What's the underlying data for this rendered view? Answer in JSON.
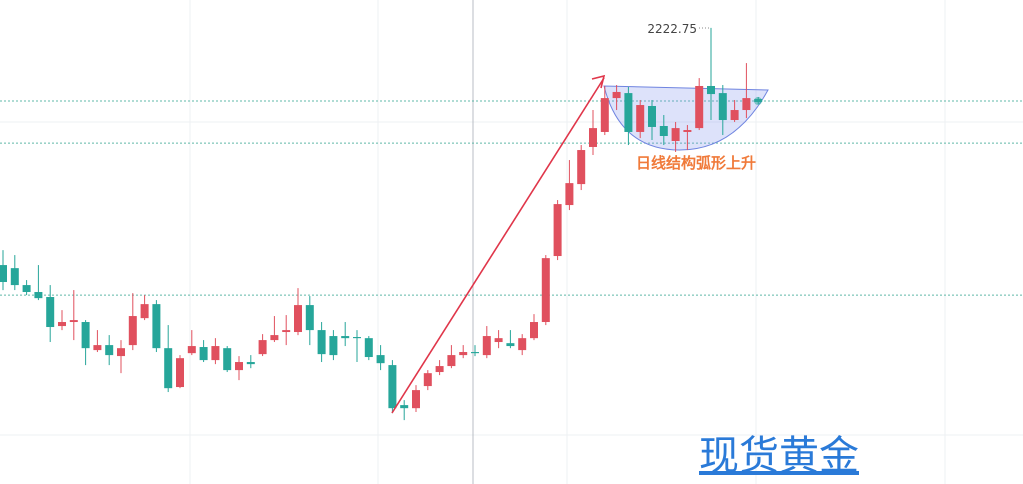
{
  "chart_data": {
    "type": "candlestick",
    "high_label": "2222.75",
    "annotation": "日线结构弧形上升",
    "watermark": "现货黄金",
    "up_color": "#e0505e",
    "down_color": "#26a69a",
    "ylim": [
      1940,
      2240
    ],
    "hlines": [
      2177.4,
      2151.3,
      2057.1
    ],
    "open": [
      2075.7,
      2073.8,
      2063.3,
      2059,
      2055.9,
      2037.9,
      2040.4,
      2040.4,
      2023,
      2026.1,
      2019.3,
      2026.1,
      2042.8,
      2051.5,
      2024.2,
      2000.1,
      2021.1,
      2024.9,
      2016.8,
      2024.2,
      2010.6,
      2015.6,
      2020.5,
      2029.2,
      2034.2,
      2034.2,
      2050.9,
      2035.4,
      2031.7,
      2031.7,
      2031.1,
      2030.4,
      2019.9,
      2013.7,
      1988.9,
      1987,
      2000.7,
      2009.4,
      2013.1,
      2019.9,
      2021.8,
      2019.9,
      2028,
      2027.3,
      2023,
      2030.4,
      2040.4,
      2081.3,
      2112.9,
      2125.9,
      2148.9,
      2158.2,
      2179.2,
      2182.3,
      2158.2,
      2174.3,
      2161.9,
      2152.6,
      2158.2,
      2160.6,
      2186.7,
      2182.3,
      2165.6,
      2171.8,
      2178.6
    ],
    "high": [
      2085,
      2081.9,
      2066.4,
      2075.7,
      2063.3,
      2047.8,
      2060.2,
      2041.6,
      2035.4,
      2032.3,
      2029.2,
      2058.3,
      2057.1,
      2054,
      2038.5,
      2019.9,
      2035.4,
      2029.2,
      2030.4,
      2025.5,
      2019.3,
      2019.9,
      2032.9,
      2044.1,
      2044.7,
      2061.4,
      2056.5,
      2040.4,
      2035.4,
      2040.4,
      2035.4,
      2031.7,
      2026.1,
      2016.8,
      1992,
      2001.3,
      2010.6,
      2016.8,
      2026.1,
      2026.1,
      2026.1,
      2037.9,
      2035.4,
      2035.4,
      2032.9,
      2045.3,
      2081.9,
      2116,
      2140.8,
      2150.1,
      2171.8,
      2186.7,
      2187.3,
      2186.1,
      2178,
      2178,
      2168.7,
      2164.4,
      2162.5,
      2191.6,
      2222.75,
      2187.3,
      2178,
      2200.9,
      2179.9
    ],
    "low": [
      2060.2,
      2060.2,
      2057.1,
      2054,
      2028,
      2035.4,
      2029.2,
      2013.7,
      2021.8,
      2013.7,
      2008.7,
      2023,
      2041.6,
      2021.8,
      1997,
      1999.4,
      2019.9,
      2015.6,
      2014.3,
      2009.4,
      2004.4,
      2011.8,
      2019.3,
      2028,
      2026.1,
      2032.3,
      2026.1,
      2015.6,
      2016.8,
      2025.5,
      2015.6,
      2016.8,
      2010.6,
      1983.9,
      1979.6,
      1984.6,
      1998.2,
      2007.5,
      2011.8,
      2018,
      2019.3,
      2018,
      2024.2,
      2024.2,
      2019.9,
      2029.2,
      2038.5,
      2078.8,
      2109.8,
      2122.2,
      2143.9,
      2156.3,
      2171.8,
      2150.1,
      2154.4,
      2153.2,
      2150.1,
      2145.8,
      2147,
      2159.4,
      2165.6,
      2156.3,
      2164.4,
      2166.8,
      2175.5
    ],
    "close": [
      2065.2,
      2063.3,
      2059,
      2055.2,
      2037.3,
      2040.4,
      2041.6,
      2024.2,
      2026.1,
      2019.9,
      2024.2,
      2044.1,
      2051.5,
      2024.2,
      1999.4,
      2018,
      2025.5,
      2016.8,
      2025.5,
      2010.6,
      2015.6,
      2014.3,
      2029.2,
      2032.3,
      2035.4,
      2050.9,
      2035.4,
      2020.5,
      2019.9,
      2030.4,
      2030.4,
      2018.7,
      2014.9,
      1987,
      1987,
      1998.2,
      2008.7,
      2013.1,
      2019.9,
      2021.8,
      2021.1,
      2031.7,
      2030.4,
      2025.5,
      2030.4,
      2040.4,
      2080,
      2113.5,
      2126.5,
      2147,
      2160.6,
      2179.2,
      2183,
      2158.2,
      2174.9,
      2161.3,
      2155.7,
      2160.6,
      2159.4,
      2186.7,
      2181.7,
      2165.6,
      2171.8,
      2179.2,
      2176.8
    ]
  }
}
